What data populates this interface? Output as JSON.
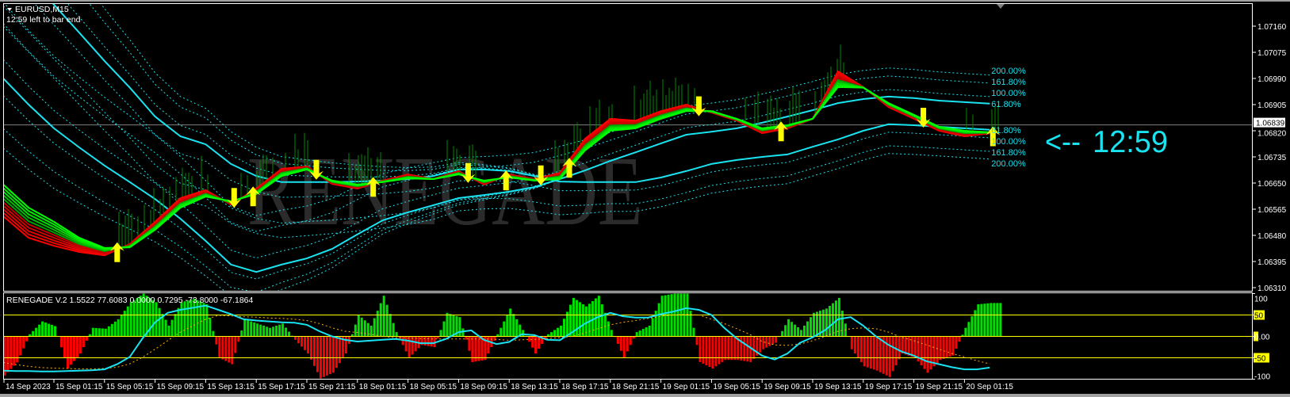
{
  "header": {
    "symbol": "EURUSD,M15",
    "countdown": "12:59 left to bar end"
  },
  "watermark": "RENEGADE",
  "countdown_marker": {
    "arrow": "<--",
    "time": "12:59"
  },
  "colors": {
    "background": "#000000",
    "channel": "#19e3f0",
    "ribbon_fast": "#ff0000",
    "ribbon_slow": "#00ff00",
    "signal_arrow": "#ffff00",
    "wick": "#008a00",
    "hist_up": "#00e000",
    "hist_down": "#ff0000",
    "level_line": "#ffff00",
    "slow_line": "#ffb000",
    "price_line": "#808080"
  },
  "chart_data": {
    "type": "line",
    "symbol": "EURUSD",
    "timeframe": "M15",
    "price_axis": {
      "ticks": [
        "1.07160",
        "1.07075",
        "1.06990",
        "1.06905",
        "1.06820",
        "1.06735",
        "1.06650",
        "1.06565",
        "1.06480",
        "1.06395",
        "1.06310"
      ],
      "ylim": [
        1.0631,
        1.0716
      ],
      "current_price": "1.06839"
    },
    "time_axis": {
      "labels": [
        "14 Sep 2023",
        "15 Sep 01:15",
        "15 Sep 05:15",
        "15 Sep 09:15",
        "15 Sep 13:15",
        "15 Sep 17:15",
        "15 Sep 21:15",
        "18 Sep 01:15",
        "18 Sep 05:15",
        "18 Sep 09:15",
        "18 Sep 13:15",
        "18 Sep 17:15",
        "18 Sep 21:15",
        "19 Sep 01:15",
        "19 Sep 05:15",
        "19 Sep 09:15",
        "19 Sep 13:15",
        "19 Sep 17:15",
        "19 Sep 21:15",
        "20 Sep 01:15"
      ]
    },
    "main": {
      "series_start": "2023-09-14 21:15",
      "step_hours": 2,
      "ribbon_fast": [
        1.06542,
        1.06472,
        1.06446,
        1.06426,
        1.06415,
        1.06452,
        1.06524,
        1.06601,
        1.06627,
        1.0658,
        1.06632,
        1.06696,
        1.06704,
        1.06647,
        1.06632,
        1.06658,
        1.06678,
        1.06663,
        1.06689,
        1.06645,
        1.06678,
        1.06663,
        1.06683,
        1.06794,
        1.06859,
        1.06853,
        1.06884,
        1.06905,
        1.06879,
        1.06853,
        1.06812,
        1.06828,
        1.06859,
        1.07013,
        1.06962,
        1.06897,
        1.06859,
        1.0682,
        1.06802,
        1.06812
      ],
      "ribbon_slow": [
        1.06645,
        1.0657,
        1.06524,
        1.06472,
        1.06439,
        1.06441,
        1.06498,
        1.0657,
        1.06606,
        1.06591,
        1.06614,
        1.06673,
        1.06694,
        1.06658,
        1.06645,
        1.06653,
        1.06665,
        1.06663,
        1.06678,
        1.06658,
        1.06668,
        1.06658,
        1.06663,
        1.06756,
        1.0682,
        1.06828,
        1.06859,
        1.06884,
        1.06884,
        1.06859,
        1.06828,
        1.06838,
        1.06859,
        1.06962,
        1.0696,
        1.0691,
        1.06872,
        1.06833,
        1.0682,
        1.06815
      ],
      "channel_upper": [
        1.0699,
        1.06905,
        1.06828,
        1.06766,
        1.06707,
        1.06653,
        1.06598,
        1.06534,
        1.06462,
        1.06385,
        1.06361,
        1.06385,
        1.06405,
        1.06436,
        1.06483,
        1.06529,
        1.06555,
        1.06578,
        1.06601,
        1.06611,
        1.06622,
        1.06637,
        1.06663,
        1.06691,
        1.06722,
        1.0675,
        1.06779,
        1.06807,
        1.06817,
        1.06828,
        1.06846,
        1.06866,
        1.06887,
        1.0691,
        1.06923,
        1.06931,
        1.06926,
        1.06918,
        1.06913,
        1.06908
      ],
      "channel_lower": [
        1.07412,
        1.07322,
        1.0723,
        1.07139,
        1.07047,
        1.0696,
        1.06866,
        1.06802,
        1.06776,
        1.06712,
        1.06673,
        1.06653,
        1.06653,
        1.06653,
        1.06655,
        1.06658,
        1.06663,
        1.06673,
        1.06694,
        1.06694,
        1.06689,
        1.06673,
        1.06655,
        1.06653,
        1.06653,
        1.06653,
        1.06668,
        1.06689,
        1.06712,
        1.06725,
        1.06735,
        1.06743,
        1.06768,
        1.06792,
        1.0682,
        1.06841,
        1.06838,
        1.06833,
        1.06828,
        1.06823
      ],
      "fib_labels_upper": [
        "200.00%",
        "161.80%",
        "100.00%",
        "61.80%"
      ],
      "fib_labels_lower": [
        "61.80%",
        "100.00%",
        "161.80%",
        "200.00%"
      ]
    },
    "signals": [
      {
        "time": "2023-09-15 06:15",
        "dir": "up"
      },
      {
        "time": "2023-09-15 15:30",
        "dir": "down"
      },
      {
        "time": "2023-09-15 17:00",
        "dir": "up"
      },
      {
        "time": "2023-09-15 22:00",
        "dir": "down"
      },
      {
        "time": "2023-09-18 02:30",
        "dir": "up"
      },
      {
        "time": "2023-09-18 10:00",
        "dir": "down"
      },
      {
        "time": "2023-09-18 13:00",
        "dir": "up"
      },
      {
        "time": "2023-09-18 15:45",
        "dir": "down"
      },
      {
        "time": "2023-09-18 18:00",
        "dir": "up"
      },
      {
        "time": "2023-09-19 04:15",
        "dir": "down"
      },
      {
        "time": "2023-09-19 10:45",
        "dir": "up"
      },
      {
        "time": "2023-09-19 22:00",
        "dir": "down"
      },
      {
        "time": "2023-09-20 03:30",
        "dir": "up"
      }
    ],
    "indicator": {
      "label": "RENEGADE V.2 1.5522 77.6083 0.0000 0.7295 -73.8000 -67.1864",
      "ylim": [
        -100,
        100
      ],
      "axis_labels": [
        "100",
        "50",
        "0.00",
        "-50",
        "-100"
      ],
      "levels": [
        50,
        0,
        -50
      ],
      "series_start": "2023-09-14 21:15",
      "step_hours": 1,
      "histogram": [
        -91,
        -61,
        5,
        35,
        24,
        -75,
        -40,
        20,
        18,
        40,
        80,
        100,
        80,
        25,
        80,
        88,
        75,
        -50,
        -65,
        40,
        30,
        20,
        30,
        -8,
        -40,
        -98,
        -85,
        -40,
        50,
        25,
        95,
        10,
        -50,
        -20,
        -25,
        55,
        45,
        -60,
        -55,
        5,
        65,
        15,
        -40,
        5,
        25,
        90,
        70,
        95,
        15,
        -50,
        10,
        25,
        95,
        100,
        100,
        -60,
        -75,
        -55,
        -55,
        -60,
        -30,
        -15,
        40,
        15,
        55,
        65,
        90,
        -30,
        -70,
        -80,
        -95,
        -40,
        -50,
        -85,
        -55,
        -45,
        20,
        75,
        78
      ],
      "signal_line": [
        -80,
        -81,
        -81,
        -82,
        -82,
        -81,
        -80,
        -79,
        -77,
        -65,
        -48,
        -5,
        33,
        55,
        62,
        67,
        72,
        62,
        52,
        40,
        37,
        35,
        33,
        32,
        27,
        12,
        0,
        -8,
        -12,
        -10,
        -8,
        -6,
        -10,
        -16,
        -16,
        -6,
        10,
        14,
        -8,
        -18,
        -13,
        5,
        3,
        -8,
        -9,
        10,
        30,
        45,
        55,
        47,
        44,
        44,
        52,
        58,
        66,
        62,
        50,
        20,
        -5,
        -25,
        -45,
        -54,
        -40,
        -15,
        -2,
        15,
        40,
        45,
        25,
        0,
        -20,
        -35,
        -45,
        -58,
        -65,
        -72,
        -77,
        -77,
        -73
      ],
      "slow_line": [
        -61,
        -66,
        -70,
        -73,
        -74,
        -75,
        -76,
        -76,
        -75,
        -72,
        -64,
        -49,
        -30,
        -10,
        10,
        25,
        40,
        49,
        48,
        46,
        45,
        43,
        42,
        40,
        37,
        30,
        20,
        12,
        9,
        5,
        0,
        -3,
        -4,
        -5,
        -6,
        -6,
        -6,
        -6,
        -6,
        -7,
        -9,
        -8,
        -7,
        -5,
        -3,
        0,
        8,
        18,
        27,
        33,
        37,
        42,
        47,
        50,
        52,
        50,
        40,
        30,
        18,
        5,
        -12,
        -20,
        -21,
        -18,
        -10,
        0,
        12,
        18,
        20,
        18,
        10,
        -2,
        -10,
        -20,
        -30,
        -40,
        -48,
        -57,
        -64
      ]
    }
  }
}
